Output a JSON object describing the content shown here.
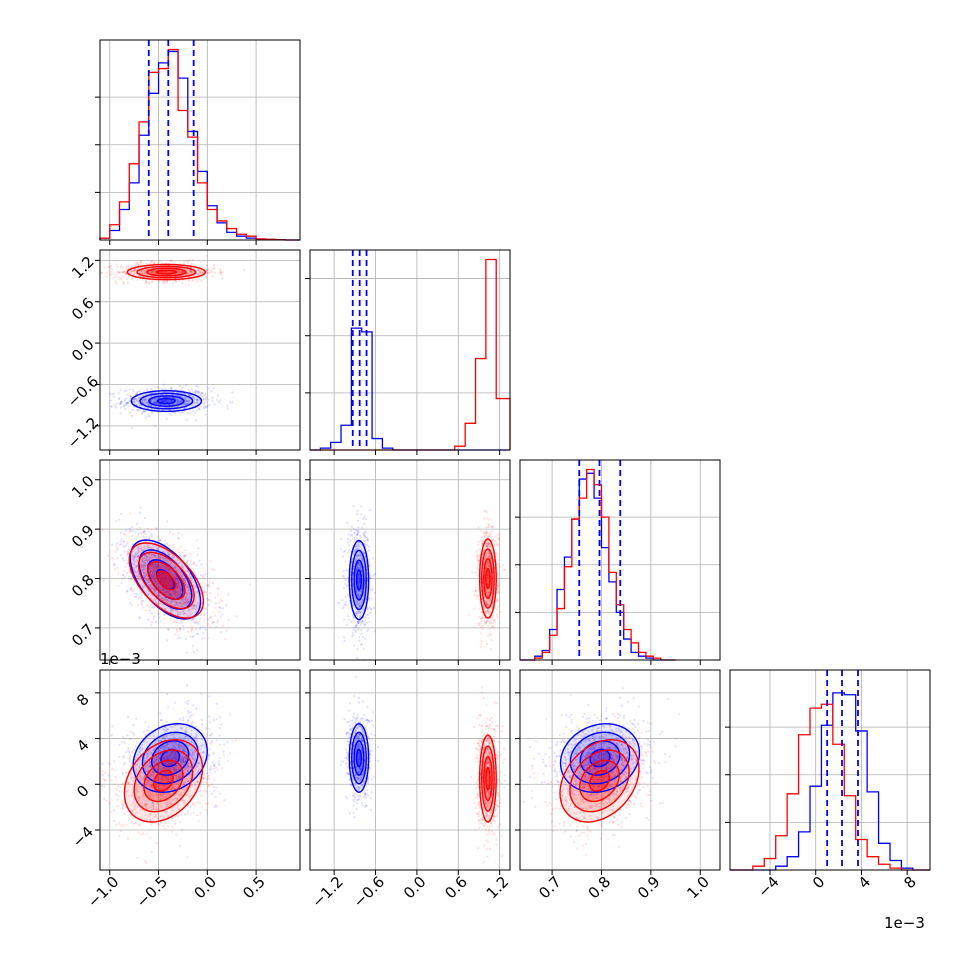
{
  "colors": {
    "series_a": "#0000ff",
    "series_b": "#ff0000",
    "grid": "#b0b0b0",
    "frame": "#000000"
  },
  "chart_data": {
    "type": "corner",
    "grid": true,
    "series": [
      {
        "color": "#0000ff"
      },
      {
        "color": "#ff0000"
      }
    ],
    "parameters": [
      {
        "range": [
          -1.1,
          0.95
        ],
        "ticks": [
          "−1.0",
          "−0.5",
          "0.0",
          "0.5"
        ],
        "tick_values": [
          -1.0,
          -0.5,
          0.0,
          0.5
        ]
      },
      {
        "range": [
          -1.55,
          1.35
        ],
        "ticks": [
          "−1.2",
          "−0.6",
          "0.0",
          "0.6",
          "1.2"
        ],
        "tick_values": [
          -1.2,
          -0.6,
          0.0,
          0.6,
          1.2
        ]
      },
      {
        "range": [
          0.635,
          1.04
        ],
        "ticks": [
          "0.7",
          "0.8",
          "0.9",
          "1.0"
        ],
        "tick_values": [
          0.7,
          0.8,
          0.9,
          1.0
        ]
      },
      {
        "range": [
          -7.5,
          10.0
        ],
        "ticks": [
          "−4",
          "0",
          "4",
          "8"
        ],
        "tick_values": [
          -4,
          0,
          4,
          8
        ],
        "offset_label": "1e−3"
      }
    ],
    "histograms": [
      {
        "param": 0,
        "quantile_lines": [
          -0.6,
          -0.4,
          -0.14
        ],
        "hist_ylim": 1.05,
        "hist_yticks": [
          0.25,
          0.5,
          0.75
        ],
        "bins": [
          -1.1,
          -1.0,
          -0.9,
          -0.8,
          -0.7,
          -0.6,
          -0.5,
          -0.4,
          -0.3,
          -0.2,
          -0.1,
          0.0,
          0.1,
          0.2,
          0.3,
          0.4,
          0.5,
          0.6,
          0.7,
          0.8,
          0.9,
          0.95
        ],
        "series": [
          {
            "values": [
              0.01,
              0.05,
              0.16,
              0.3,
              0.55,
              0.77,
              0.93,
              0.99,
              0.85,
              0.57,
              0.36,
              0.18,
              0.09,
              0.04,
              0.02,
              0.01,
              0.005,
              0.003,
              0.001,
              0.0,
              0.0
            ]
          },
          {
            "values": [
              0.01,
              0.08,
              0.2,
              0.4,
              0.62,
              0.88,
              0.9,
              1.0,
              0.68,
              0.54,
              0.3,
              0.16,
              0.1,
              0.06,
              0.03,
              0.02,
              0.005,
              0.003,
              0.001,
              0.0,
              0.0
            ]
          }
        ]
      },
      {
        "param": 1,
        "quantile_lines": [
          -0.93,
          -0.83,
          -0.73
        ],
        "hist_ylim": 1.05,
        "hist_yticks": [
          0.3,
          0.6,
          0.9
        ],
        "bins": [
          -1.55,
          -1.4,
          -1.25,
          -1.1,
          -0.95,
          -0.8,
          -0.65,
          -0.5,
          -0.35,
          -0.2,
          -0.05,
          0.1,
          0.25,
          0.4,
          0.55,
          0.7,
          0.85,
          1.0,
          1.15,
          1.35
        ],
        "series": [
          {
            "values": [
              0.0,
              0.01,
              0.04,
              0.13,
              0.64,
              0.62,
              0.06,
              0.01,
              0.0,
              0.0,
              0.0,
              0.0,
              0.0,
              0.0,
              0.0,
              0.0,
              0.0,
              0.0,
              0.0
            ]
          },
          {
            "values": [
              0.0,
              0.0,
              0.0,
              0.0,
              0.0,
              0.0,
              0.0,
              0.0,
              0.0,
              0.0,
              0.0,
              0.0,
              0.0,
              0.0,
              0.02,
              0.14,
              0.48,
              1.0,
              0.27
            ]
          }
        ]
      },
      {
        "param": 2,
        "quantile_lines": [
          0.755,
          0.796,
          0.838
        ],
        "hist_ylim": 1.05,
        "hist_yticks": [
          0.25,
          0.5,
          0.75
        ],
        "bins": [
          0.635,
          0.65,
          0.665,
          0.68,
          0.695,
          0.71,
          0.725,
          0.74,
          0.755,
          0.77,
          0.785,
          0.8,
          0.815,
          0.83,
          0.845,
          0.86,
          0.875,
          0.89,
          0.905,
          0.92,
          0.935,
          0.95
        ],
        "series": [
          {
            "values": [
              0.0,
              0.0,
              0.02,
              0.05,
              0.16,
              0.37,
              0.54,
              0.74,
              0.95,
              0.98,
              0.85,
              0.59,
              0.41,
              0.25,
              0.11,
              0.04,
              0.02,
              0.01,
              0.0,
              0.0,
              0.0
            ]
          },
          {
            "values": [
              0.0,
              0.0,
              0.01,
              0.04,
              0.13,
              0.27,
              0.49,
              0.74,
              0.85,
              1.0,
              0.92,
              0.75,
              0.46,
              0.29,
              0.16,
              0.09,
              0.04,
              0.02,
              0.01,
              0.0,
              0.0
            ]
          }
        ]
      },
      {
        "param": 3,
        "quantile_lines": [
          1.0,
          2.3,
          3.7
        ],
        "hist_ylim": 1.05,
        "hist_yticks": [
          0.25,
          0.5,
          0.75
        ],
        "bins": [
          -7.5,
          -6.5,
          -5.5,
          -4.5,
          -3.5,
          -2.5,
          -1.5,
          -0.5,
          0.5,
          1.5,
          2.5,
          3.5,
          4.5,
          5.5,
          6.5,
          7.5,
          8.5,
          10.0
        ],
        "series": [
          {
            "values": [
              0.0,
              0.0,
              0.0,
              0.0,
              0.02,
              0.07,
              0.2,
              0.44,
              0.76,
              0.93,
              0.92,
              0.73,
              0.41,
              0.14,
              0.05,
              0.01,
              0.0
            ]
          },
          {
            "values": [
              0.0,
              0.0,
              0.02,
              0.06,
              0.18,
              0.4,
              0.71,
              0.85,
              0.87,
              0.66,
              0.39,
              0.16,
              0.07,
              0.03,
              0.01,
              0.0,
              0.0
            ]
          }
        ]
      }
    ],
    "pairs": [
      {
        "x": 0,
        "y": 1,
        "series": [
          {
            "mean": [
              -0.42,
              -0.84
            ],
            "sd": [
              0.18,
              0.075
            ],
            "rho": 0.0
          },
          {
            "mean": [
              -0.42,
              1.03
            ],
            "sd": [
              0.2,
              0.055
            ],
            "rho": 0.0
          }
        ]
      },
      {
        "x": 0,
        "y": 2,
        "series": [
          {
            "mean": [
              -0.43,
              0.798
            ],
            "sd": [
              0.18,
              0.04
            ],
            "rho": -0.55
          },
          {
            "mean": [
              -0.42,
              0.796
            ],
            "sd": [
              0.19,
              0.038
            ],
            "rho": -0.55
          }
        ]
      },
      {
        "x": 1,
        "y": 2,
        "series": [
          {
            "mean": [
              -0.84,
              0.797
            ],
            "sd": [
              0.07,
              0.04
            ],
            "rho": 0.0
          },
          {
            "mean": [
              1.03,
              0.8
            ],
            "sd": [
              0.06,
              0.04
            ],
            "rho": 0.0
          }
        ]
      },
      {
        "x": 0,
        "y": 3,
        "series": [
          {
            "mean": [
              -0.38,
              2.3
            ],
            "sd": [
              0.19,
              1.5
            ],
            "rho": 0.2
          },
          {
            "mean": [
              -0.45,
              0.3
            ],
            "sd": [
              0.2,
              1.8
            ],
            "rho": 0.3
          }
        ]
      },
      {
        "x": 1,
        "y": 3,
        "series": [
          {
            "mean": [
              -0.84,
              2.3
            ],
            "sd": [
              0.07,
              1.5
            ],
            "rho": 0.0
          },
          {
            "mean": [
              1.03,
              0.5
            ],
            "sd": [
              0.06,
              1.9
            ],
            "rho": 0.0
          }
        ]
      },
      {
        "x": 2,
        "y": 3,
        "series": [
          {
            "mean": [
              0.797,
              2.3
            ],
            "sd": [
              0.04,
              1.5
            ],
            "rho": 0.15
          },
          {
            "mean": [
              0.796,
              0.3
            ],
            "sd": [
              0.04,
              1.8
            ],
            "rho": 0.3
          }
        ]
      }
    ]
  }
}
